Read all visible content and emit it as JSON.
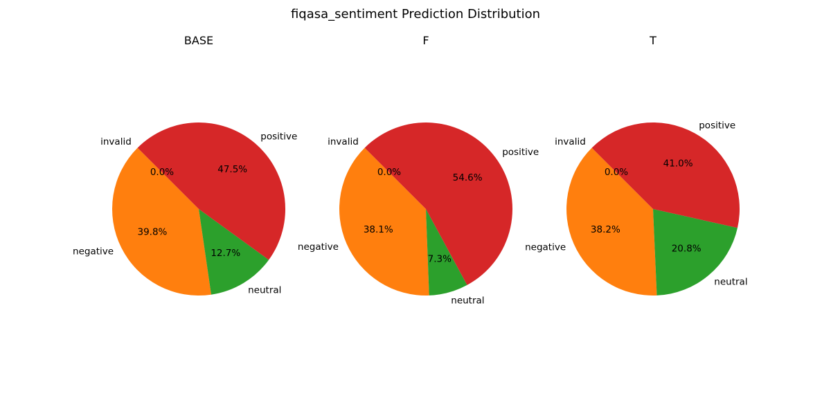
{
  "title": "fiqasa_sentiment Prediction Distribution",
  "chart_data": [
    {
      "type": "pie",
      "title": "BASE",
      "categories": [
        "invalid",
        "negative",
        "neutral",
        "positive"
      ],
      "values": [
        0.0,
        39.8,
        12.7,
        47.5
      ],
      "value_labels": [
        "0.0%",
        "39.8%",
        "12.7%",
        "47.5%"
      ],
      "colors": [
        "#1f77b4",
        "#ff7f0e",
        "#2ca02c",
        "#d62728"
      ],
      "start_angle_deg": 135,
      "direction": "counterclockwise"
    },
    {
      "type": "pie",
      "title": "F",
      "categories": [
        "invalid",
        "negative",
        "neutral",
        "positive"
      ],
      "values": [
        0.0,
        38.1,
        7.3,
        54.6
      ],
      "value_labels": [
        "0.0%",
        "38.1%",
        "7.3%",
        "54.6%"
      ],
      "colors": [
        "#1f77b4",
        "#ff7f0e",
        "#2ca02c",
        "#d62728"
      ],
      "start_angle_deg": 135,
      "direction": "counterclockwise"
    },
    {
      "type": "pie",
      "title": "T",
      "categories": [
        "invalid",
        "negative",
        "neutral",
        "positive"
      ],
      "values": [
        0.0,
        38.2,
        20.8,
        41.0
      ],
      "value_labels": [
        "0.0%",
        "38.2%",
        "20.8%",
        "41.0%"
      ],
      "colors": [
        "#1f77b4",
        "#ff7f0e",
        "#2ca02c",
        "#d62728"
      ],
      "start_angle_deg": 135,
      "direction": "counterclockwise"
    }
  ]
}
